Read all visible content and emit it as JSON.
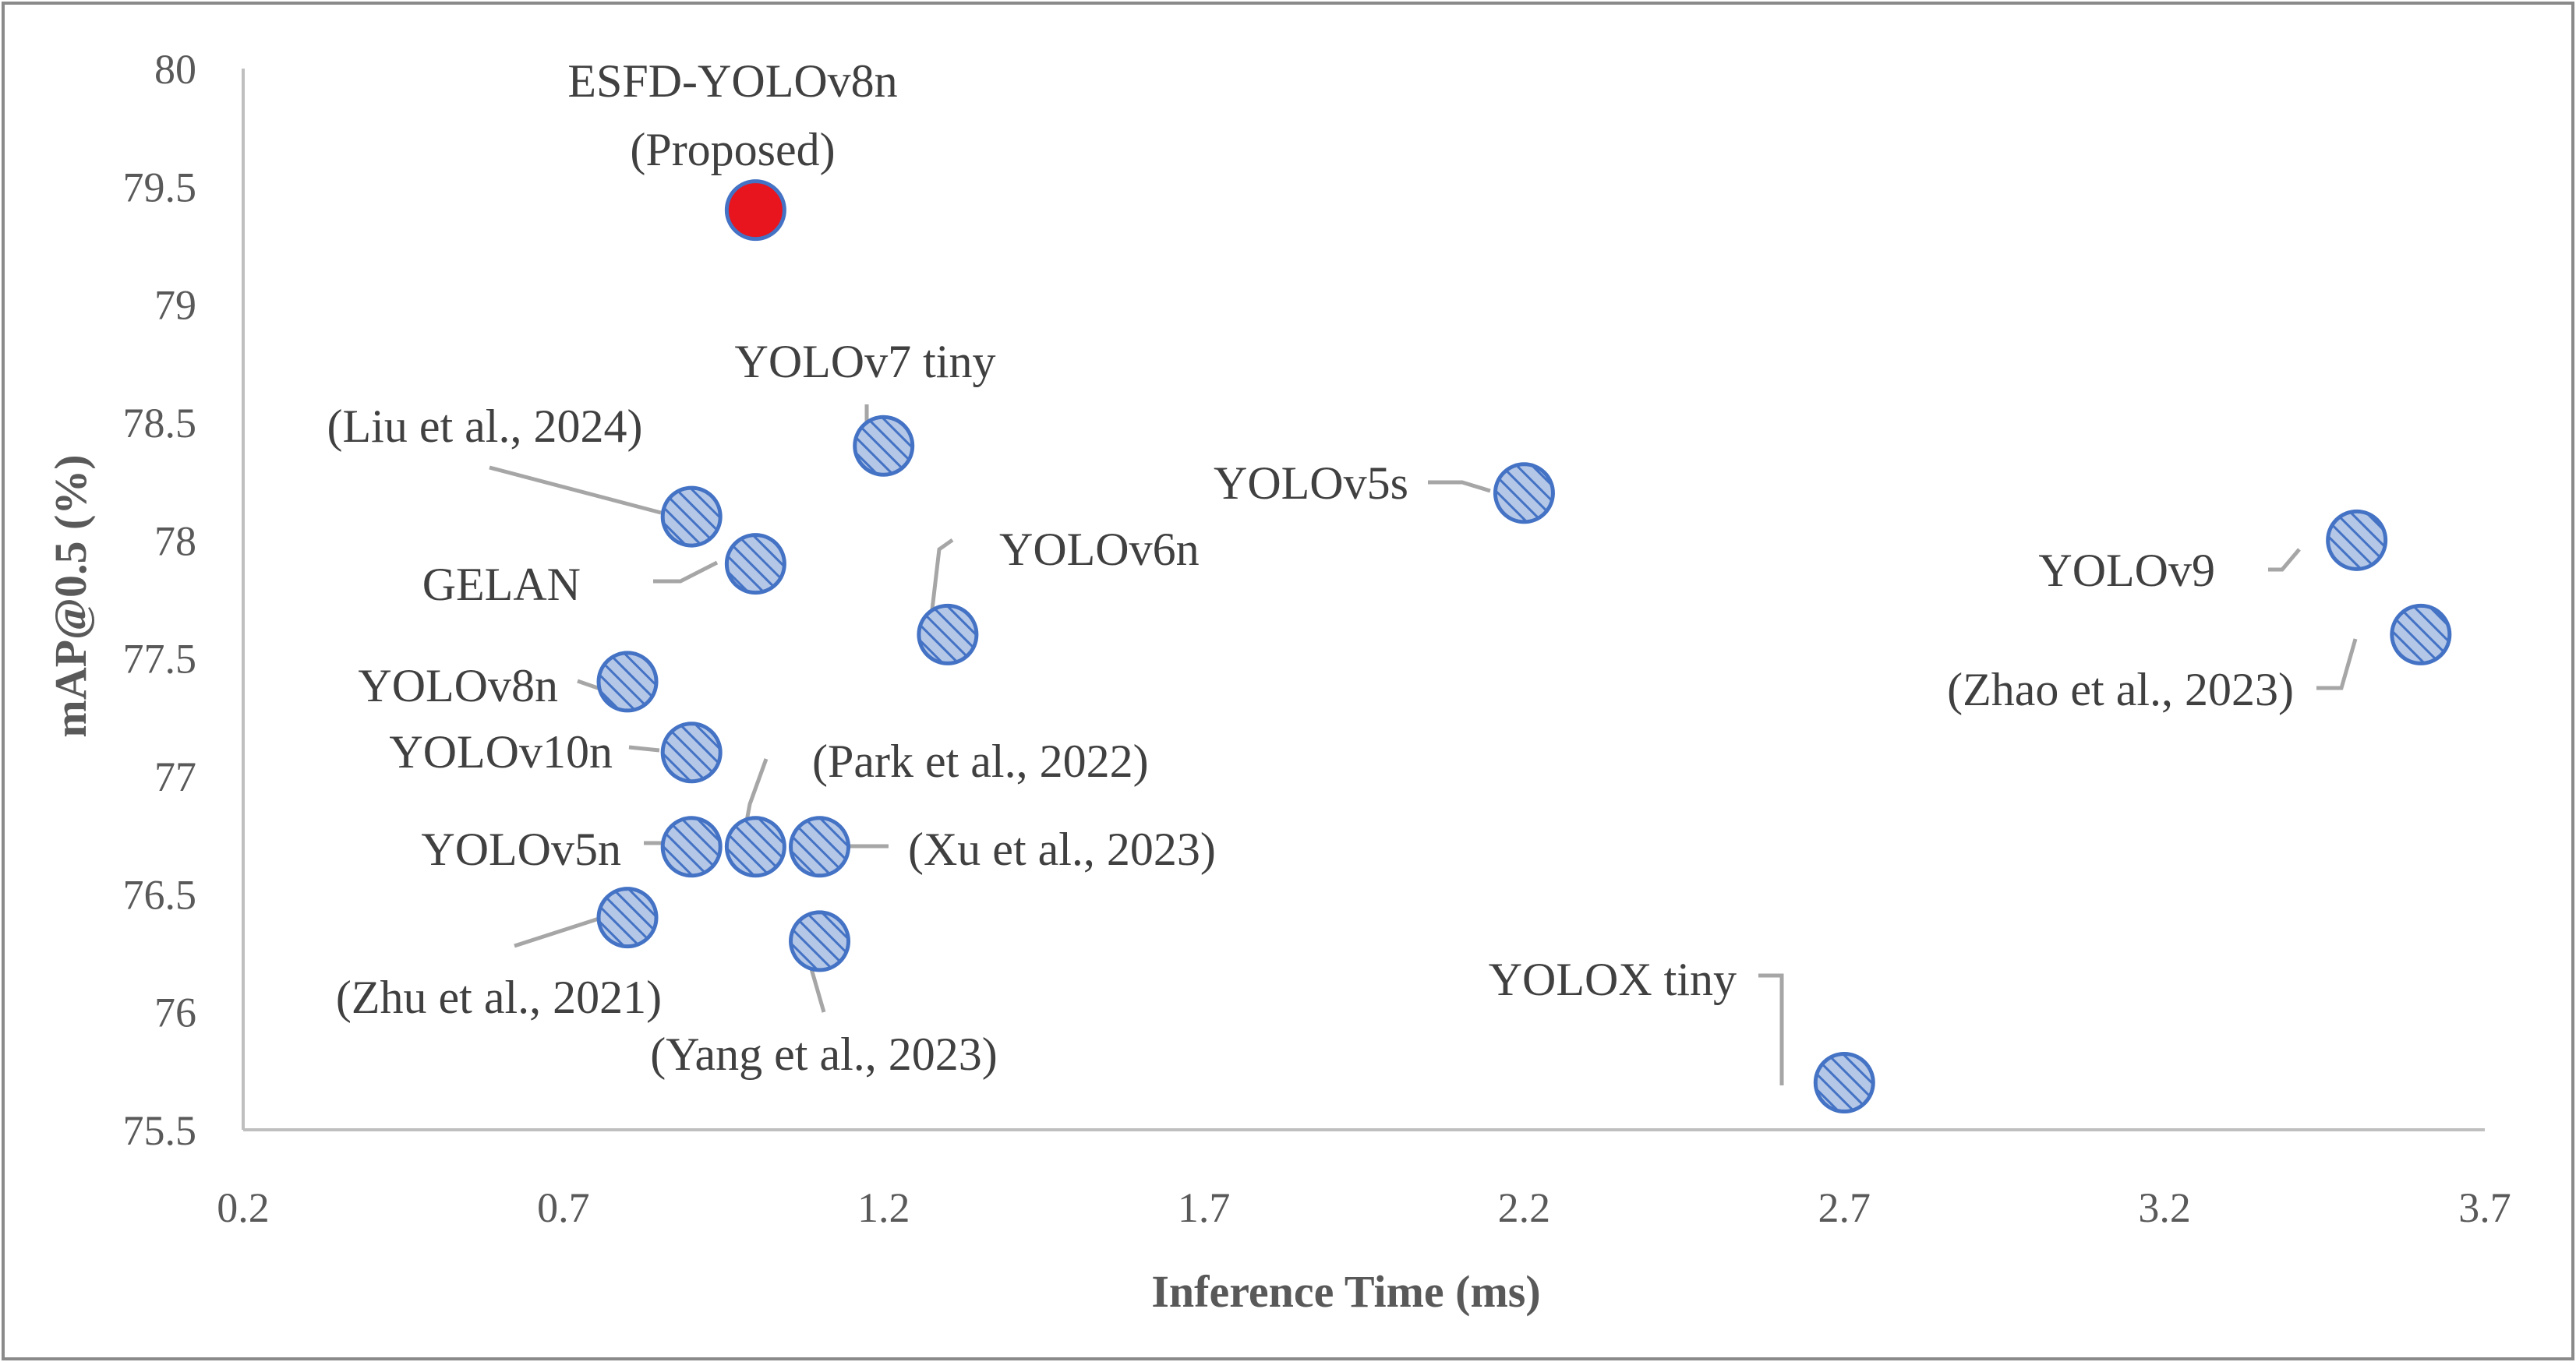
{
  "chart_data": {
    "type": "scatter",
    "title": "",
    "xlabel": "Inference Time (ms)",
    "ylabel": "mAP@0.5 (%)",
    "xlim": [
      0.2,
      3.7
    ],
    "ylim": [
      75.5,
      80
    ],
    "xticks": [
      "0.2",
      "0.7",
      "1.2",
      "1.7",
      "2.2",
      "2.7",
      "3.2",
      "3.7"
    ],
    "yticks": [
      "75.5",
      "76",
      "76.5",
      "77",
      "77.5",
      "78",
      "78.5",
      "79",
      "79.5",
      "80"
    ],
    "colors": {
      "highlight": "#e8141e",
      "marker_fill": "#b4c7e7",
      "marker_hatch": "#4472c4",
      "marker_edge": "#4472c4"
    },
    "points": [
      {
        "label": "ESFD-YOLOv8n (Proposed)",
        "label_lines": [
          "ESFD-YOLOv8n",
          "(Proposed)"
        ],
        "x": 1.0,
        "y": 79.4,
        "highlight": true
      },
      {
        "label": "YOLOv7 tiny",
        "x": 1.2,
        "y": 78.4
      },
      {
        "label": "(Liu et al., 2024)",
        "x": 0.9,
        "y": 78.1
      },
      {
        "label": "GELAN",
        "x": 1.0,
        "y": 77.9
      },
      {
        "label": "YOLOv6n",
        "x": 1.3,
        "y": 77.6
      },
      {
        "label": "YOLOv5s",
        "x": 2.2,
        "y": 78.2
      },
      {
        "label": "YOLOv9",
        "x": 3.5,
        "y": 78.0
      },
      {
        "label": "(Zhao et al., 2023)",
        "x": 3.6,
        "y": 77.6
      },
      {
        "label": "YOLOv8n",
        "x": 0.8,
        "y": 77.4
      },
      {
        "label": "YOLOv10n",
        "x": 0.9,
        "y": 77.1
      },
      {
        "label": "(Park et al., 2022)",
        "x": 1.0,
        "y": 76.7
      },
      {
        "label": "YOLOv5n",
        "x": 0.9,
        "y": 76.7
      },
      {
        "label": "(Xu et al., 2023)",
        "x": 1.1,
        "y": 76.7
      },
      {
        "label": "(Zhu et al., 2021)",
        "x": 0.8,
        "y": 76.4
      },
      {
        "label": "(Yang et al., 2023)",
        "x": 1.1,
        "y": 76.3
      },
      {
        "label": "YOLOX tiny",
        "x": 2.7,
        "y": 75.7
      }
    ]
  }
}
